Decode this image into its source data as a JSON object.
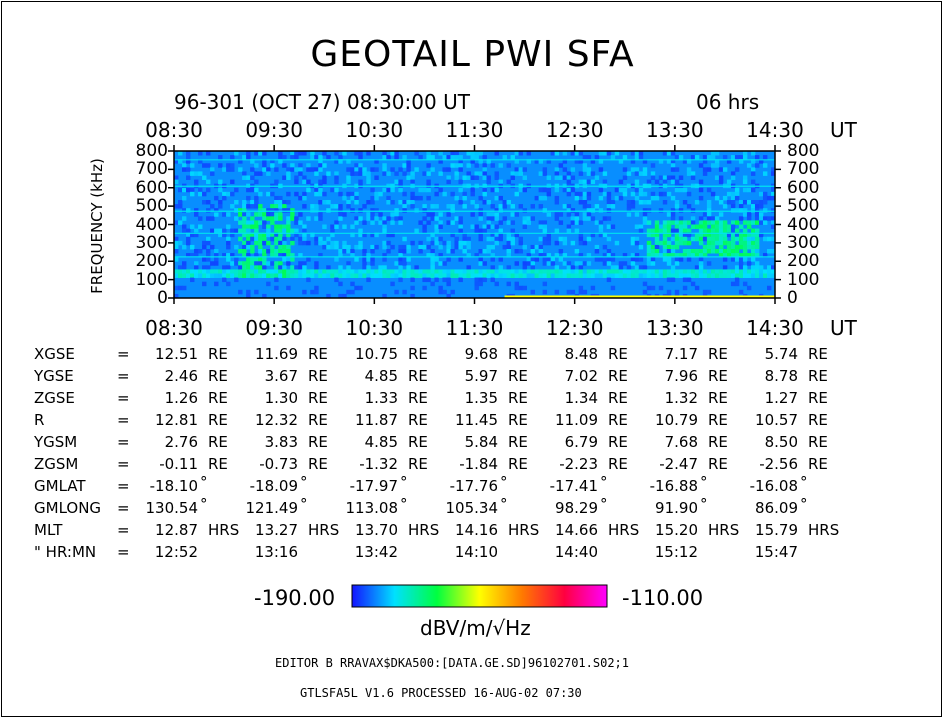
{
  "title": "GEOTAIL PWI SFA",
  "subtitle": "96-301 (OCT 27) 08:30:00 UT",
  "duration": "06 hrs",
  "colorbar": {
    "min": "-190.00",
    "max": "-110.00",
    "unit": "dBV/m/√Hz"
  },
  "footer": {
    "editor": "EDITOR B    RRAVAX$DKA500:[DATA.GE.SD]96102701.S02;1",
    "processed": "GTLSFA5L V1.6      PROCESSED 16-AUG-02  07:30"
  },
  "chart_data": {
    "type": "heatmap",
    "title": "GEOTAIL PWI SFA",
    "xlabel": "UT",
    "ylabel": "FREQUENCY (kHz)",
    "x_tick_labels": [
      "08:30",
      "09:30",
      "10:30",
      "11:30",
      "12:30",
      "13:30",
      "14:30"
    ],
    "x_unit": "UT",
    "y_tick_labels": [
      "800",
      "700",
      "600",
      "500",
      "400",
      "300",
      "200",
      "100",
      "0"
    ],
    "ylim": [
      0,
      800
    ],
    "colorscale": {
      "min": -190.0,
      "max": -110.0,
      "colors": [
        "#1414ff",
        "#00e0ff",
        "#00ff40",
        "#ffff00",
        "#ff7a00",
        "#ff0040",
        "#ff00ff"
      ]
    },
    "spectrogram_intensity": {
      "note": "background intensity 0..1 on the color scale",
      "background": 0.1,
      "low_band_0_100kHz": 0.2
    }
  },
  "params": {
    "rows": [
      {
        "label": "XGSE",
        "eq": "=",
        "unit": "RE",
        "values": [
          "12.51",
          "11.69",
          "10.75",
          "9.68",
          "8.48",
          "7.17",
          "5.74"
        ]
      },
      {
        "label": "YGSE",
        "eq": "=",
        "unit": "RE",
        "values": [
          "2.46",
          "3.67",
          "4.85",
          "5.97",
          "7.02",
          "7.96",
          "8.78"
        ]
      },
      {
        "label": "ZGSE",
        "eq": "=",
        "unit": "RE",
        "values": [
          "1.26",
          "1.30",
          "1.33",
          "1.35",
          "1.34",
          "1.32",
          "1.27"
        ]
      },
      {
        "label": "R",
        "eq": "=",
        "unit": "RE",
        "values": [
          "12.81",
          "12.32",
          "11.87",
          "11.45",
          "11.09",
          "10.79",
          "10.57"
        ]
      },
      {
        "label": "YGSM",
        "eq": "=",
        "unit": "RE",
        "values": [
          "2.76",
          "3.83",
          "4.85",
          "5.84",
          "6.79",
          "7.68",
          "8.50"
        ]
      },
      {
        "label": "ZGSM",
        "eq": "=",
        "unit": "RE",
        "values": [
          "-0.11",
          "-0.73",
          "-1.32",
          "-1.84",
          "-2.23",
          "-2.47",
          "-2.56"
        ]
      },
      {
        "label": "GMLAT",
        "eq": "=",
        "unit": "°",
        "values": [
          "-18.10",
          "-18.09",
          "-17.97",
          "-17.76",
          "-17.41",
          "-16.88",
          "-16.08"
        ]
      },
      {
        "label": "GMLONG",
        "eq": "=",
        "unit": "°",
        "values": [
          "130.54",
          "121.49",
          "113.08",
          "105.34",
          "98.29",
          "91.90",
          "86.09"
        ]
      },
      {
        "label": "MLT",
        "eq": "=",
        "unit": "HRS",
        "values": [
          "12.87",
          "13.27",
          "13.70",
          "14.16",
          "14.66",
          "15.20",
          "15.79"
        ]
      },
      {
        "label": "\" HR:MN",
        "eq": "=",
        "unit": "",
        "values": [
          "12:52",
          "13:16",
          "13:42",
          "14:10",
          "14:40",
          "15:12",
          "15:47"
        ]
      }
    ]
  }
}
